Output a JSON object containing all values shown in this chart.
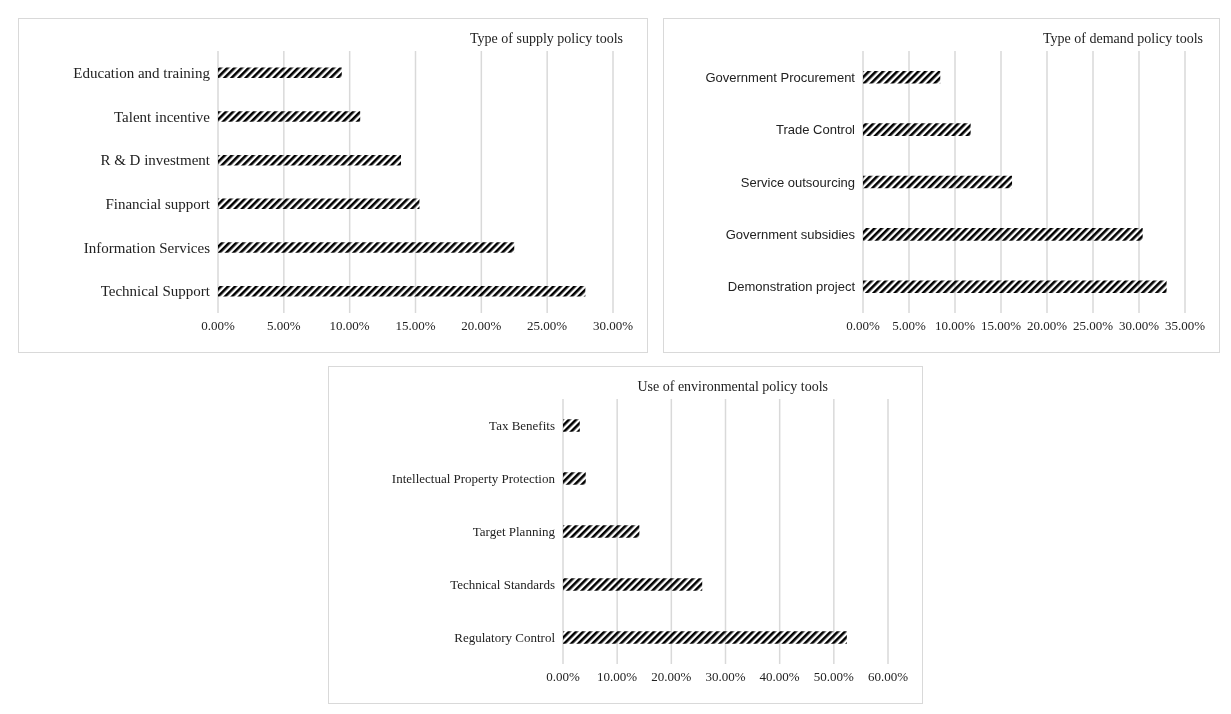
{
  "chart_data": [
    {
      "type": "bar",
      "orientation": "horizontal",
      "title": "Type of supply policy tools",
      "categories": [
        "Education and training",
        "Talent incentive",
        "R & D investment",
        "Financial support",
        "Information Services",
        "Technical Support"
      ],
      "values": [
        9.4,
        10.8,
        13.9,
        15.3,
        22.5,
        27.9
      ],
      "color": "#000000",
      "xlim": [
        0,
        30
      ],
      "xticks": [
        {
          "value": 0,
          "label": "0.00%"
        },
        {
          "value": 5,
          "label": "5.00%"
        },
        {
          "value": 10,
          "label": "10.00%"
        },
        {
          "value": 15,
          "label": "15.00%"
        },
        {
          "value": 20,
          "label": "20.00%"
        },
        {
          "value": 25,
          "label": "25.00%"
        },
        {
          "value": 30,
          "label": "30.00%"
        }
      ],
      "grid": "x",
      "legend": false
    },
    {
      "type": "bar",
      "orientation": "horizontal",
      "title": "Type of demand policy tools",
      "categories": [
        "Government Procurement",
        "Trade Control",
        "Service outsourcing",
        "Government subsidies",
        "Demonstration project"
      ],
      "values": [
        8.4,
        11.7,
        16.2,
        30.4,
        33.0
      ],
      "color": "#000000",
      "xlim": [
        0,
        35
      ],
      "xticks": [
        {
          "value": 0,
          "label": "0.00%"
        },
        {
          "value": 5,
          "label": "5.00%"
        },
        {
          "value": 10,
          "label": "10.00%"
        },
        {
          "value": 15,
          "label": "15.00%"
        },
        {
          "value": 20,
          "label": "20.00%"
        },
        {
          "value": 25,
          "label": "25.00%"
        },
        {
          "value": 30,
          "label": "30.00%"
        },
        {
          "value": 35,
          "label": "35.00%"
        }
      ],
      "grid": "x",
      "legend": false
    },
    {
      "type": "bar",
      "orientation": "horizontal",
      "title": "Use of environmental policy tools",
      "categories": [
        "Tax Benefits",
        "Intellectual Property Protection",
        "Target Planning",
        "Technical Standards",
        "Regulatory Control"
      ],
      "values": [
        3.1,
        4.2,
        14.1,
        25.7,
        52.4
      ],
      "color": "#000000",
      "xlim": [
        0,
        60
      ],
      "xticks": [
        {
          "value": 0,
          "label": "0.00%"
        },
        {
          "value": 10,
          "label": "10.00%"
        },
        {
          "value": 20,
          "label": "20.00%"
        },
        {
          "value": 30,
          "label": "30.00%"
        },
        {
          "value": 40,
          "label": "40.00%"
        },
        {
          "value": 50,
          "label": "50.00%"
        },
        {
          "value": 60,
          "label": "60.00%"
        }
      ],
      "grid": "x",
      "legend": false
    }
  ]
}
